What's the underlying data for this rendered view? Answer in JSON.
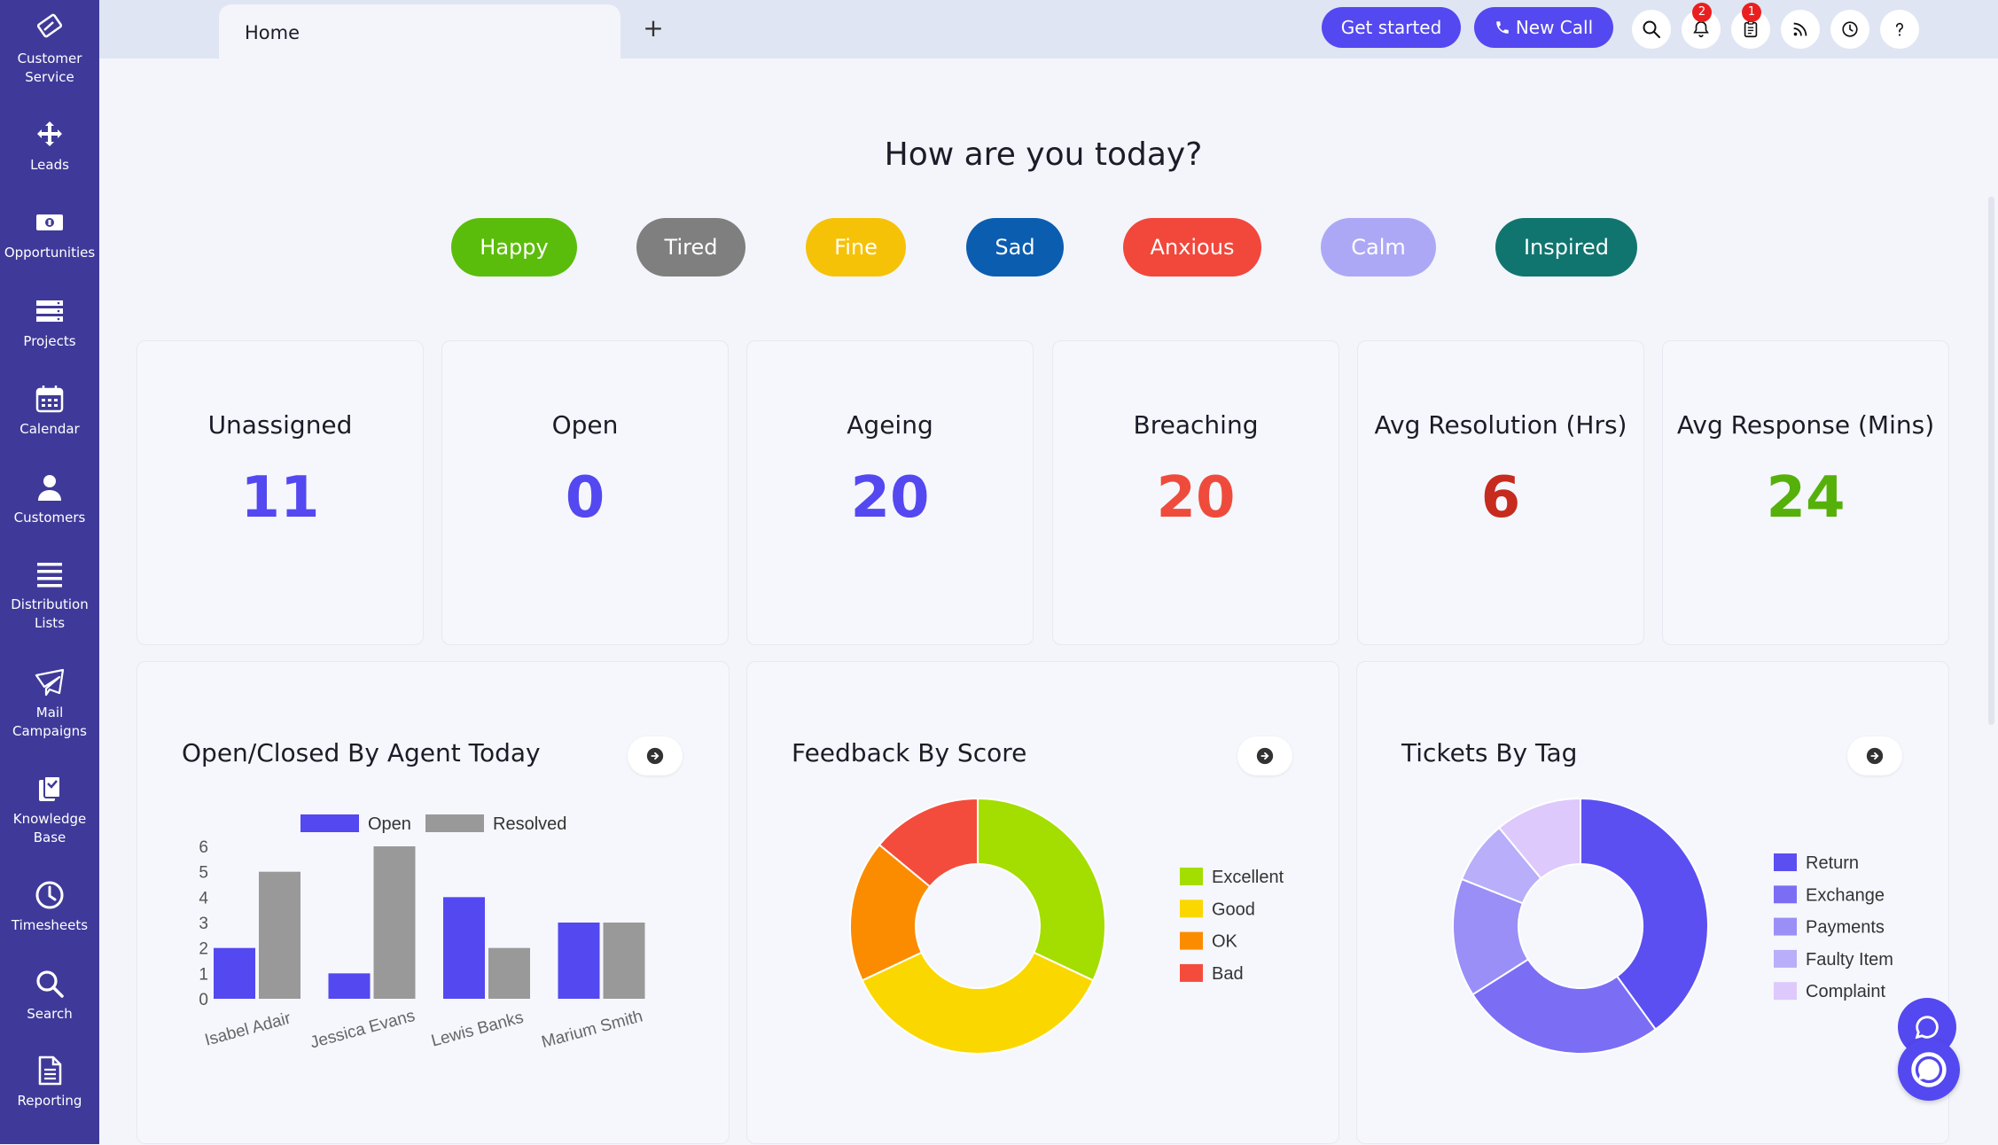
{
  "sidebar": {
    "items": [
      {
        "label": "Customer Service",
        "icon": "ticket-icon"
      },
      {
        "label": "Leads",
        "icon": "move-arrows-icon"
      },
      {
        "label": "Opportunities",
        "icon": "money-icon"
      },
      {
        "label": "Projects",
        "icon": "server-icon"
      },
      {
        "label": "Calendar",
        "icon": "calendar-icon"
      },
      {
        "label": "Customers",
        "icon": "user-icon"
      },
      {
        "label": "Distribution Lists",
        "icon": "list-icon"
      },
      {
        "label": "Mail Campaigns",
        "icon": "envelope-icon"
      },
      {
        "label": "Knowledge Base",
        "icon": "knowledge-icon"
      },
      {
        "label": "Timesheets",
        "icon": "clock-icon"
      },
      {
        "label": "Search",
        "icon": "search-icon"
      },
      {
        "label": "Reporting",
        "icon": "document-icon"
      }
    ]
  },
  "topbar": {
    "tab_label": "Home",
    "new_tab": "+",
    "get_started": "Get started",
    "new_call": "New Call",
    "notifications_count": "2",
    "tasks_count": "1"
  },
  "mood": {
    "heading": "How are you today?",
    "options": [
      {
        "label": "Happy",
        "color": "#5bbd0b"
      },
      {
        "label": "Tired",
        "color": "#7f7f7f"
      },
      {
        "label": "Fine",
        "color": "#f6c208"
      },
      {
        "label": "Sad",
        "color": "#0b5db0"
      },
      {
        "label": "Anxious",
        "color": "#f2473b"
      },
      {
        "label": "Calm",
        "color": "#ada8f5"
      },
      {
        "label": "Inspired",
        "color": "#11756f"
      }
    ]
  },
  "stats": [
    {
      "title": "Unassigned",
      "value": "11",
      "color": "#5448f0"
    },
    {
      "title": "Open",
      "value": "0",
      "color": "#5448f0"
    },
    {
      "title": "Ageing",
      "value": "20",
      "color": "#5448f0"
    },
    {
      "title": "Breaching",
      "value": "20",
      "color": "#ef4b3c"
    },
    {
      "title": "Avg Resolution (Hrs)",
      "value": "6",
      "color": "#c62b1e"
    },
    {
      "title": "Avg Response (Mins)",
      "value": "24",
      "color": "#55b10a"
    }
  ],
  "chart_data": [
    {
      "type": "bar",
      "title": "Open/Closed By Agent Today",
      "categories": [
        "Isabel Adair",
        "Jessica Evans",
        "Lewis Banks",
        "Marium Smith"
      ],
      "series": [
        {
          "name": "Open",
          "values": [
            2,
            1,
            4,
            3
          ],
          "color": "#5448f0"
        },
        {
          "name": "Resolved",
          "values": [
            5,
            6,
            2,
            3
          ],
          "color": "#999999"
        }
      ],
      "ylim": [
        0,
        6
      ],
      "yticks": [
        "0",
        "1",
        "2",
        "3",
        "4",
        "5",
        "6"
      ],
      "legend": "top"
    },
    {
      "type": "pie",
      "title": "Feedback By Score",
      "labels": [
        "Excellent",
        "Good",
        "OK",
        "Bad"
      ],
      "values": [
        32,
        36,
        18,
        14
      ],
      "colors": [
        "#a4dd00",
        "#fbd700",
        "#fb8c00",
        "#f34c3c"
      ],
      "legend": "right"
    },
    {
      "type": "pie",
      "title": "Tickets By Tag",
      "labels": [
        "Return",
        "Exchange",
        "Payments",
        "Faulty Item",
        "Complaint"
      ],
      "values": [
        40,
        26,
        15,
        8,
        11
      ],
      "colors": [
        "#5b4ff2",
        "#7b6ef5",
        "#9a8ff7",
        "#b8aef9",
        "#ddc9fb"
      ],
      "legend": "right"
    }
  ]
}
